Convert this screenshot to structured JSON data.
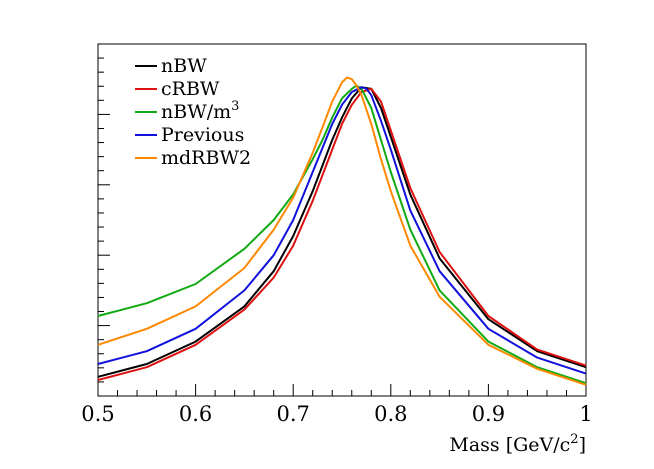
{
  "chart_data": {
    "type": "line",
    "title": "",
    "xlabel": "Mass [GeV/c",
    "xlabel_sup": "2",
    "xlabel_close": "]",
    "ylabel": "",
    "xlim": [
      0.5,
      1.0
    ],
    "ylim": [
      0,
      1.1
    ],
    "x_tick_labels": [
      "0.5",
      "0.6",
      "0.7",
      "0.8",
      "0.9",
      "1"
    ],
    "y_tick_labels_visible": false,
    "grid": false,
    "legend_position": "top-left",
    "series": [
      {
        "name": "nBW",
        "name_sup": "",
        "color": "#000000",
        "x": [
          0.5,
          0.55,
          0.6,
          0.65,
          0.68,
          0.7,
          0.72,
          0.74,
          0.75,
          0.76,
          0.77,
          0.78,
          0.79,
          0.8,
          0.82,
          0.85,
          0.9,
          0.95,
          1.0
        ],
        "y": [
          0.06,
          0.1,
          0.17,
          0.28,
          0.39,
          0.5,
          0.64,
          0.8,
          0.87,
          0.93,
          0.965,
          0.96,
          0.9,
          0.81,
          0.63,
          0.43,
          0.24,
          0.14,
          0.09
        ]
      },
      {
        "name": "cRBW",
        "name_sup": "",
        "color": "#dd1111",
        "x": [
          0.5,
          0.55,
          0.6,
          0.65,
          0.68,
          0.7,
          0.72,
          0.74,
          0.75,
          0.76,
          0.77,
          0.78,
          0.79,
          0.8,
          0.82,
          0.85,
          0.9,
          0.95,
          1.0
        ],
        "y": [
          0.05,
          0.09,
          0.16,
          0.27,
          0.37,
          0.47,
          0.61,
          0.77,
          0.85,
          0.91,
          0.95,
          0.96,
          0.92,
          0.83,
          0.65,
          0.45,
          0.25,
          0.145,
          0.095
        ]
      },
      {
        "name": "nBW/m",
        "name_sup": "3",
        "color": "#11aa11",
        "x": [
          0.5,
          0.55,
          0.6,
          0.65,
          0.68,
          0.7,
          0.72,
          0.73,
          0.74,
          0.75,
          0.76,
          0.765,
          0.77,
          0.78,
          0.79,
          0.8,
          0.82,
          0.85,
          0.9,
          0.95,
          1.0
        ],
        "y": [
          0.25,
          0.29,
          0.35,
          0.46,
          0.55,
          0.63,
          0.74,
          0.8,
          0.87,
          0.93,
          0.96,
          0.97,
          0.96,
          0.9,
          0.8,
          0.7,
          0.52,
          0.33,
          0.17,
          0.09,
          0.04
        ]
      },
      {
        "name": "Previous",
        "name_sup": "",
        "color": "#1111dd",
        "x": [
          0.5,
          0.55,
          0.6,
          0.65,
          0.68,
          0.7,
          0.72,
          0.74,
          0.75,
          0.76,
          0.77,
          0.775,
          0.78,
          0.79,
          0.8,
          0.82,
          0.85,
          0.9,
          0.95,
          1.0
        ],
        "y": [
          0.1,
          0.14,
          0.21,
          0.33,
          0.44,
          0.55,
          0.7,
          0.85,
          0.91,
          0.95,
          0.965,
          0.96,
          0.94,
          0.86,
          0.77,
          0.58,
          0.39,
          0.21,
          0.12,
          0.07
        ]
      },
      {
        "name": "mdRBW2",
        "name_sup": "",
        "color": "#ff8800",
        "x": [
          0.5,
          0.55,
          0.6,
          0.65,
          0.68,
          0.7,
          0.72,
          0.73,
          0.74,
          0.75,
          0.755,
          0.76,
          0.765,
          0.77,
          0.78,
          0.79,
          0.8,
          0.82,
          0.85,
          0.9,
          0.95,
          1.0
        ],
        "y": [
          0.16,
          0.21,
          0.28,
          0.4,
          0.52,
          0.62,
          0.76,
          0.84,
          0.92,
          0.98,
          0.995,
          0.99,
          0.97,
          0.94,
          0.85,
          0.74,
          0.64,
          0.47,
          0.31,
          0.16,
          0.085,
          0.035
        ]
      }
    ]
  }
}
